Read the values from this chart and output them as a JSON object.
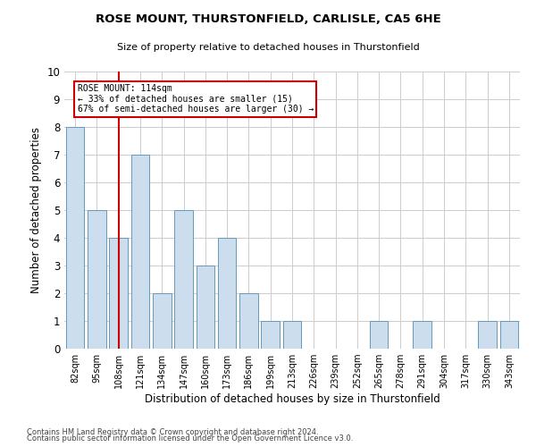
{
  "title1": "ROSE MOUNT, THURSTONFIELD, CARLISLE, CA5 6HE",
  "title2": "Size of property relative to detached houses in Thurstonfield",
  "xlabel": "Distribution of detached houses by size in Thurstonfield",
  "ylabel": "Number of detached properties",
  "categories": [
    "82sqm",
    "95sqm",
    "108sqm",
    "121sqm",
    "134sqm",
    "147sqm",
    "160sqm",
    "173sqm",
    "186sqm",
    "199sqm",
    "213sqm",
    "226sqm",
    "239sqm",
    "252sqm",
    "265sqm",
    "278sqm",
    "291sqm",
    "304sqm",
    "317sqm",
    "330sqm",
    "343sqm"
  ],
  "values": [
    8,
    5,
    4,
    7,
    2,
    5,
    3,
    4,
    2,
    1,
    1,
    0,
    0,
    0,
    1,
    0,
    1,
    0,
    0,
    1,
    1
  ],
  "bar_color": "#ccdded",
  "bar_edgecolor": "#6699bb",
  "highlight_index": 2,
  "highlight_color": "#cc0000",
  "ylim": [
    0,
    10
  ],
  "annotation_title": "ROSE MOUNT: 114sqm",
  "annotation_line1": "← 33% of detached houses are smaller (15)",
  "annotation_line2": "67% of semi-detached houses are larger (30) →",
  "annotation_box_color": "#cc0000",
  "footnote1": "Contains HM Land Registry data © Crown copyright and database right 2024.",
  "footnote2": "Contains public sector information licensed under the Open Government Licence v3.0."
}
